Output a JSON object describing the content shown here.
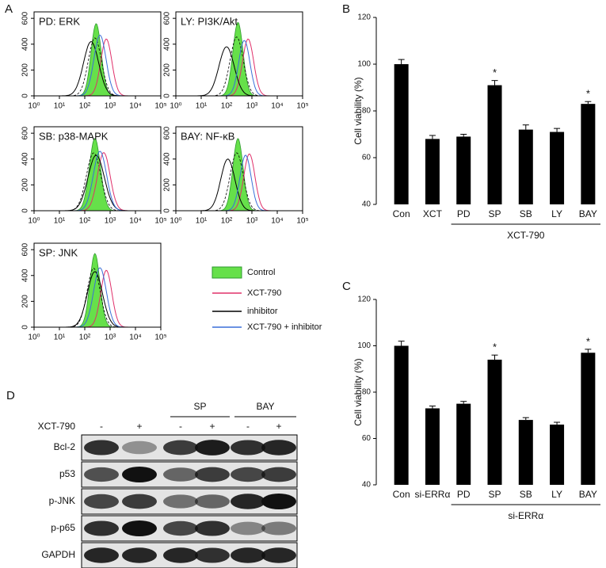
{
  "panel_labels": [
    "A",
    "B",
    "C",
    "D"
  ],
  "chart_data": [
    {
      "type": "flow",
      "title": "PD: ERK",
      "xlim": [
        0,
        5
      ],
      "xticks": [
        {
          "value": 0,
          "label": "10⁰"
        },
        {
          "value": 1,
          "label": "10¹"
        },
        {
          "value": 2,
          "label": "10²"
        },
        {
          "value": 3,
          "label": "10³"
        },
        {
          "value": 4,
          "label": "10⁴"
        },
        {
          "value": 5,
          "label": "10⁵"
        }
      ],
      "ylim": [
        0,
        650
      ],
      "yticks": [
        0,
        200,
        400,
        600
      ]
    },
    {
      "type": "flow",
      "title": "LY: PI3K/Akt",
      "xlim": [
        0,
        5
      ],
      "xticks": [
        {
          "value": 0,
          "label": "10⁰"
        },
        {
          "value": 1,
          "label": "10¹"
        },
        {
          "value": 2,
          "label": "10²"
        },
        {
          "value": 3,
          "label": "10³"
        },
        {
          "value": 4,
          "label": "10⁴"
        },
        {
          "value": 5,
          "label": "10⁵"
        }
      ],
      "ylim": [
        0,
        650
      ],
      "yticks": [
        0,
        200,
        400,
        600
      ]
    },
    {
      "type": "flow",
      "title": "SB: p38-MAPK",
      "xlim": [
        0,
        5
      ],
      "xticks": [
        {
          "value": 0,
          "label": "10⁰"
        },
        {
          "value": 1,
          "label": "10¹"
        },
        {
          "value": 2,
          "label": "10²"
        },
        {
          "value": 3,
          "label": "10³"
        },
        {
          "value": 4,
          "label": "10⁴"
        },
        {
          "value": 5,
          "label": "10⁵"
        }
      ],
      "ylim": [
        0,
        650
      ],
      "yticks": [
        0,
        200,
        400,
        600
      ]
    },
    {
      "type": "flow",
      "title": "BAY: NF-κB",
      "xlim": [
        0,
        5
      ],
      "xticks": [
        {
          "value": 0,
          "label": "10⁰"
        },
        {
          "value": 1,
          "label": "10¹"
        },
        {
          "value": 2,
          "label": "10²"
        },
        {
          "value": 3,
          "label": "10³"
        },
        {
          "value": 4,
          "label": "10⁴"
        },
        {
          "value": 5,
          "label": "10⁵"
        }
      ],
      "ylim": [
        0,
        650
      ],
      "yticks": [
        0,
        200,
        400,
        600
      ]
    },
    {
      "type": "flow",
      "title": "SP: JNK",
      "xlim": [
        0,
        5
      ],
      "xticks": [
        {
          "value": 0,
          "label": "10⁰"
        },
        {
          "value": 1,
          "label": "10¹"
        },
        {
          "value": 2,
          "label": "10²"
        },
        {
          "value": 3,
          "label": "10³"
        },
        {
          "value": 4,
          "label": "10⁴"
        },
        {
          "value": 5,
          "label": "10⁵"
        }
      ],
      "ylim": [
        0,
        650
      ],
      "yticks": [
        0,
        200,
        400,
        600
      ]
    },
    {
      "type": "bar",
      "ylabel": "Cell viability (%)",
      "categories": [
        "Con",
        "XCT",
        "PD",
        "SP",
        "SB",
        "LY",
        "BAY"
      ],
      "values": [
        100,
        68,
        69,
        91,
        72,
        71,
        83
      ],
      "errors": [
        2,
        1.5,
        1,
        2,
        2,
        1.5,
        1
      ],
      "significance": [
        null,
        null,
        null,
        "*",
        null,
        null,
        "*"
      ],
      "group_label": "XCT-790",
      "color": "#000000",
      "ylim": [
        40,
        120
      ],
      "yticks": [
        40,
        60,
        80,
        100,
        120
      ]
    },
    {
      "type": "bar",
      "ylabel": "Cell viability (%)",
      "categories": [
        "Con",
        "si-ERRα",
        "PD",
        "SP",
        "SB",
        "LY",
        "BAY"
      ],
      "values": [
        100,
        73,
        75,
        94,
        68,
        66,
        97
      ],
      "errors": [
        2,
        1,
        1,
        2,
        1,
        1,
        1.5
      ],
      "significance": [
        null,
        null,
        null,
        "*",
        null,
        null,
        "*"
      ],
      "group_label": "si-ERRα",
      "color": "#000000",
      "ylim": [
        40,
        120
      ],
      "yticks": [
        40,
        60,
        80,
        100,
        120
      ]
    }
  ],
  "flow_legend": [
    {
      "name": "Control",
      "color": "#66e04a"
    },
    {
      "name": "XCT-790",
      "color": "#e0306a"
    },
    {
      "name": "inhibitor",
      "color": "#000000"
    },
    {
      "name": "XCT-790 + inhibitor",
      "color": "#3a6fd8"
    }
  ],
  "blot": {
    "treatment_label": "XCT-790",
    "signs": [
      "-",
      "+",
      "-",
      "+",
      "-",
      "+"
    ],
    "groups": [
      "SP",
      "BAY"
    ],
    "rows": [
      "Bcl-2",
      "p53",
      "p-JNK",
      "p-p65",
      "GAPDH"
    ]
  }
}
